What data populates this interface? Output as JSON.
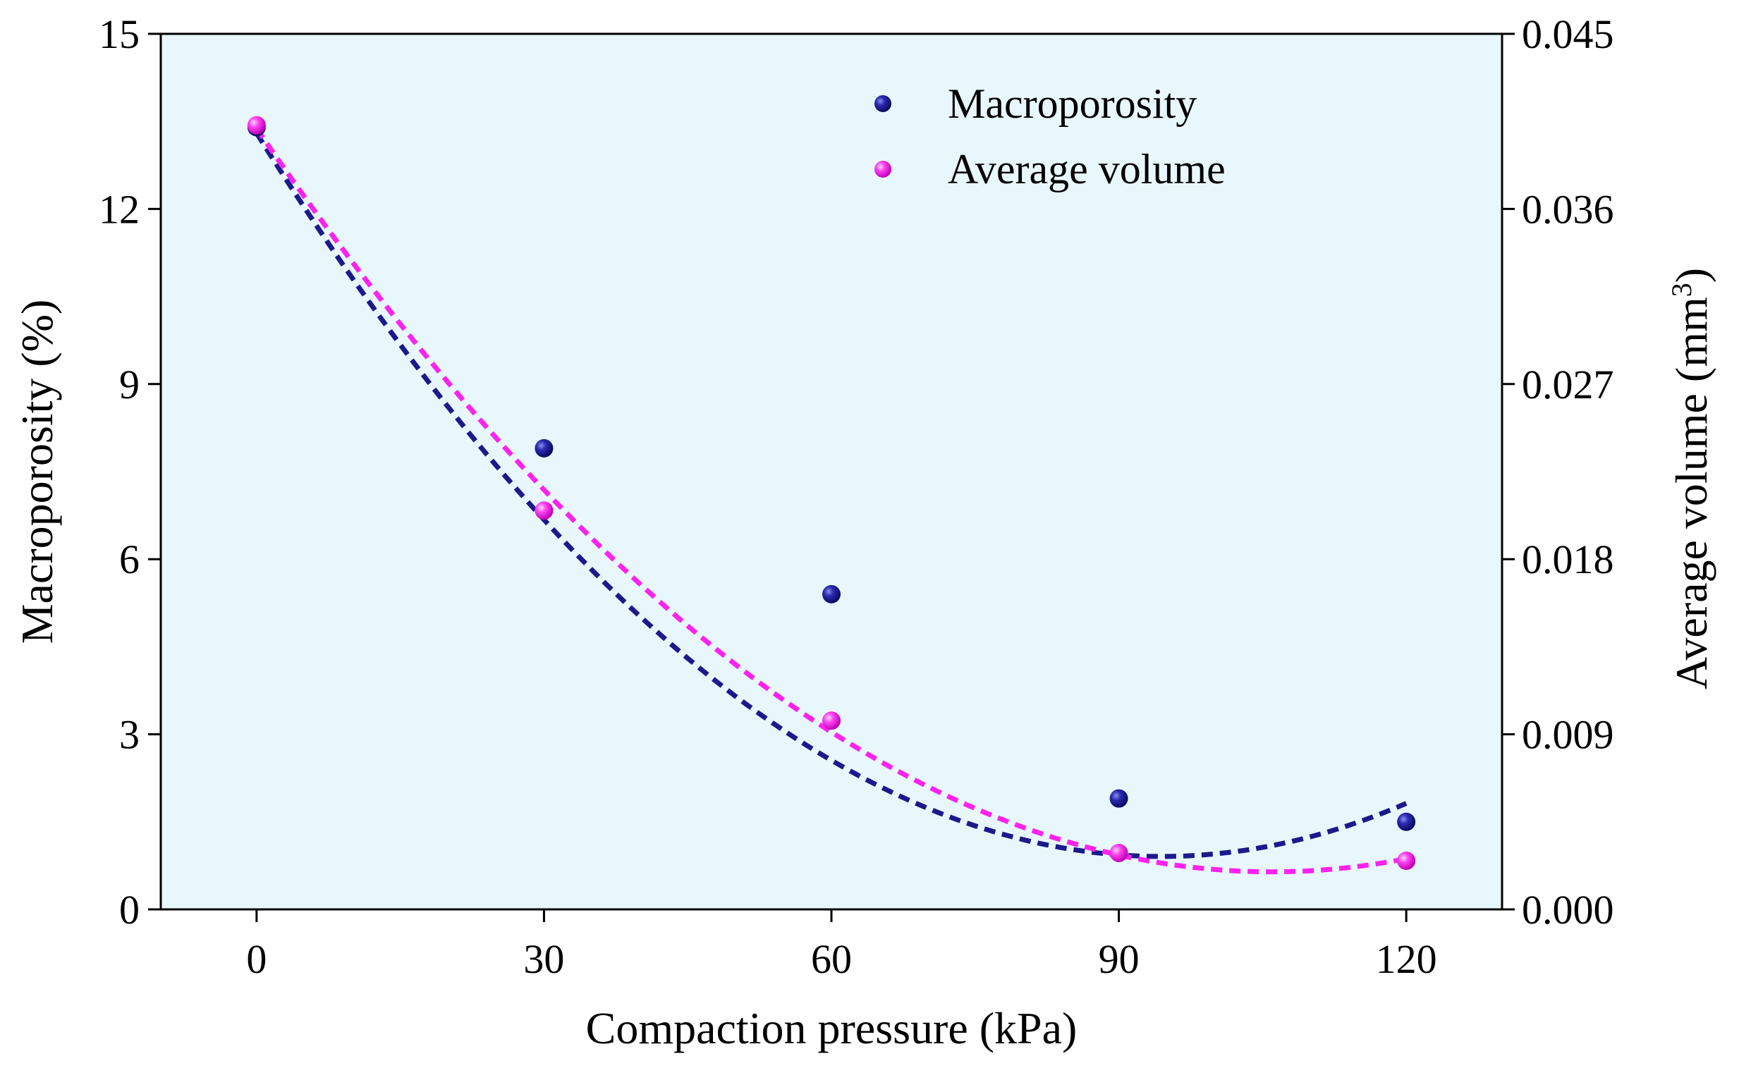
{
  "chart_data": {
    "type": "scatter",
    "title": "",
    "xlabel": "Compaction pressure (kPa)",
    "ylabel_left": "Macroporosity (%)",
    "ylabel_right_main": "Average volume (mm",
    "ylabel_right_sup": "3",
    "ylabel_right_close": ")",
    "x": [
      0,
      30,
      60,
      90,
      120
    ],
    "xlim": [
      -10,
      130
    ],
    "xticks": [
      "0",
      "30",
      "60",
      "90",
      "120"
    ],
    "xtick_values": [
      0,
      30,
      60,
      90,
      120
    ],
    "ylim_left": [
      0,
      15
    ],
    "yticks_left": [
      "0",
      "3",
      "6",
      "9",
      "12",
      "15"
    ],
    "ytick_values_left": [
      0,
      3,
      6,
      9,
      12,
      15
    ],
    "ylim_right": [
      0,
      0.045
    ],
    "yticks_right": [
      "0.000",
      "0.009",
      "0.018",
      "0.027",
      "0.036",
      "0.045"
    ],
    "ytick_values_right": [
      0,
      0.009,
      0.018,
      0.027,
      0.036,
      0.045
    ],
    "series": [
      {
        "name": "Macroporosity",
        "axis": "left",
        "color": "#1a1a8c",
        "values": [
          13.4,
          7.9,
          5.4,
          1.9,
          1.5
        ],
        "fit": [
          13.3,
          -0.2625,
          0.00139
        ]
      },
      {
        "name": "Average volume",
        "axis": "right",
        "color": "#ff22ee",
        "values": [
          0.0403,
          0.0205,
          0.0097,
          0.0029,
          0.0025
        ],
        "fit": [
          0.04014,
          -0.0007214,
          3.405e-06
        ]
      }
    ],
    "legend": {
      "position": "top-center"
    },
    "grid": false,
    "background_color": "#e8f7fb"
  }
}
